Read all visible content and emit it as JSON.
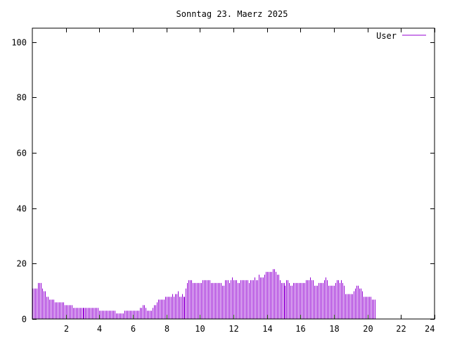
{
  "chart_data": {
    "type": "bar",
    "title": "Sonntag 23. Maerz 2025",
    "xlabel": "",
    "ylabel": "",
    "xlim": [
      0,
      24
    ],
    "ylim": [
      0,
      105
    ],
    "x_ticks": [
      2,
      4,
      6,
      8,
      10,
      12,
      14,
      16,
      18,
      20,
      22,
      24
    ],
    "y_ticks": [
      0,
      20,
      40,
      60,
      80,
      100
    ],
    "grid": false,
    "legend_position": "top-right",
    "series": [
      {
        "name": "User",
        "color": "#9400d3",
        "interval_minutes": 5,
        "values": [
          11,
          11,
          11,
          11,
          13,
          13,
          13,
          11,
          10,
          10,
          8,
          8,
          7,
          7,
          7,
          7,
          6,
          6,
          6,
          6,
          6,
          6,
          6,
          5,
          5,
          5,
          5,
          5,
          5,
          4,
          4,
          4,
          4,
          4,
          4,
          4,
          4,
          4,
          4,
          4,
          4,
          4,
          4,
          4,
          4,
          4,
          4,
          4,
          3,
          3,
          3,
          3,
          3,
          3,
          3,
          3,
          3,
          3,
          3,
          3,
          2,
          2,
          2,
          2,
          2,
          2,
          3,
          3,
          3,
          3,
          3,
          3,
          3,
          3,
          3,
          3,
          3,
          4,
          4,
          5,
          5,
          4,
          3,
          3,
          3,
          3,
          4,
          5,
          5,
          6,
          7,
          7,
          7,
          7,
          7,
          8,
          8,
          8,
          8,
          8,
          9,
          8,
          9,
          9,
          10,
          8,
          8,
          9,
          8,
          8,
          11,
          13,
          14,
          14,
          14,
          13,
          13,
          13,
          13,
          13,
          13,
          13,
          14,
          14,
          14,
          14,
          14,
          14,
          13,
          13,
          13,
          13,
          13,
          13,
          13,
          13,
          12,
          12,
          14,
          14,
          14,
          13,
          14,
          15,
          14,
          14,
          14,
          13,
          13,
          14,
          14,
          14,
          14,
          14,
          14,
          13,
          14,
          14,
          14,
          15,
          14,
          14,
          16,
          15,
          15,
          15,
          16,
          17,
          17,
          17,
          17,
          17,
          18,
          18,
          17,
          16,
          16,
          14,
          13,
          13,
          13,
          12,
          14,
          14,
          13,
          12,
          12,
          13,
          13,
          13,
          13,
          13,
          13,
          13,
          13,
          13,
          14,
          14,
          14,
          15,
          14,
          14,
          12,
          12,
          12,
          13,
          13,
          13,
          13,
          14,
          15,
          14,
          12,
          12,
          12,
          12,
          12,
          13,
          14,
          14,
          13,
          14,
          13,
          12,
          9,
          9,
          9,
          9,
          9,
          9,
          10,
          11,
          12,
          12,
          11,
          11,
          10,
          8,
          8,
          8,
          8,
          8,
          8,
          7,
          7,
          7
        ]
      }
    ]
  }
}
